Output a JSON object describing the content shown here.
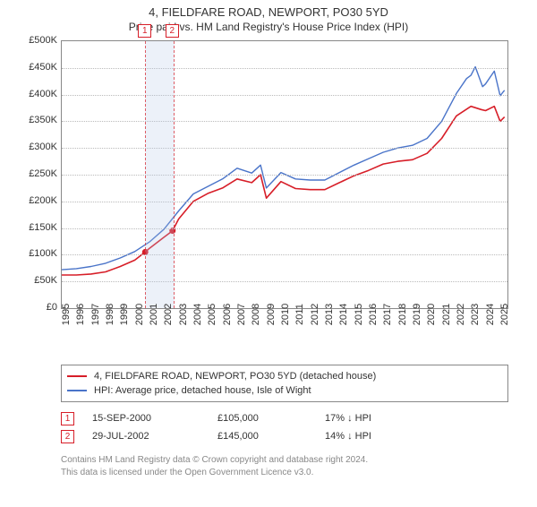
{
  "title": "4, FIELDFARE ROAD, NEWPORT, PO30 5YD",
  "subtitle": "Price paid vs. HM Land Registry's House Price Index (HPI)",
  "chart": {
    "type": "line",
    "background_color": "#ffffff",
    "grid_color": "#bbbbbb",
    "axis_color": "#888888",
    "title_fontsize": 13,
    "label_fontsize": 11,
    "x": {
      "min": 1995,
      "max": 2025.5,
      "ticks": [
        1995,
        1996,
        1997,
        1998,
        1999,
        2000,
        2001,
        2002,
        2003,
        2004,
        2005,
        2006,
        2007,
        2008,
        2009,
        2010,
        2011,
        2012,
        2013,
        2014,
        2015,
        2016,
        2017,
        2018,
        2019,
        2020,
        2021,
        2022,
        2023,
        2024,
        2025
      ]
    },
    "y": {
      "min": 0,
      "max": 500000,
      "tick_step": 50000,
      "labels": [
        "£0",
        "£50K",
        "£100K",
        "£150K",
        "£200K",
        "£250K",
        "£300K",
        "£350K",
        "£400K",
        "£450K",
        "£500K"
      ]
    },
    "band": {
      "from": 2000.71,
      "to": 2002.58
    },
    "series": [
      {
        "name": "4, FIELDFARE ROAD, NEWPORT, PO30 5YD (detached house)",
        "color": "#d71e28",
        "line_width": 1.6,
        "data": [
          [
            1995,
            62000
          ],
          [
            1996,
            62000
          ],
          [
            1997,
            64000
          ],
          [
            1998,
            68000
          ],
          [
            1999,
            78000
          ],
          [
            2000,
            90000
          ],
          [
            2000.71,
            105000
          ],
          [
            2001,
            112000
          ],
          [
            2002,
            133000
          ],
          [
            2002.58,
            145000
          ],
          [
            2003,
            167000
          ],
          [
            2004,
            200000
          ],
          [
            2005,
            215000
          ],
          [
            2006,
            225000
          ],
          [
            2007,
            242000
          ],
          [
            2008,
            235000
          ],
          [
            2008.6,
            250000
          ],
          [
            2009,
            206000
          ],
          [
            2010,
            237000
          ],
          [
            2011,
            224000
          ],
          [
            2012,
            222000
          ],
          [
            2013,
            222000
          ],
          [
            2014,
            235000
          ],
          [
            2015,
            248000
          ],
          [
            2016,
            258000
          ],
          [
            2017,
            270000
          ],
          [
            2018,
            275000
          ],
          [
            2019,
            278000
          ],
          [
            2020,
            290000
          ],
          [
            2021,
            318000
          ],
          [
            2022,
            360000
          ],
          [
            2023,
            378000
          ],
          [
            2023.7,
            372000
          ],
          [
            2024,
            370000
          ],
          [
            2024.6,
            378000
          ],
          [
            2025,
            350000
          ],
          [
            2025.3,
            358000
          ]
        ]
      },
      {
        "name": "HPI: Average price, detached house, Isle of Wight",
        "color": "#4a74c9",
        "line_width": 1.4,
        "data": [
          [
            1995,
            72000
          ],
          [
            1996,
            74000
          ],
          [
            1997,
            78000
          ],
          [
            1998,
            84000
          ],
          [
            1999,
            94000
          ],
          [
            2000,
            106000
          ],
          [
            2001,
            124000
          ],
          [
            2002,
            148000
          ],
          [
            2003,
            182000
          ],
          [
            2004,
            214000
          ],
          [
            2005,
            228000
          ],
          [
            2006,
            242000
          ],
          [
            2007,
            262000
          ],
          [
            2008,
            253000
          ],
          [
            2008.6,
            268000
          ],
          [
            2009,
            225000
          ],
          [
            2010,
            254000
          ],
          [
            2011,
            242000
          ],
          [
            2012,
            240000
          ],
          [
            2013,
            240000
          ],
          [
            2014,
            254000
          ],
          [
            2015,
            268000
          ],
          [
            2016,
            280000
          ],
          [
            2017,
            292000
          ],
          [
            2018,
            300000
          ],
          [
            2019,
            305000
          ],
          [
            2020,
            318000
          ],
          [
            2021,
            350000
          ],
          [
            2022,
            402000
          ],
          [
            2022.7,
            430000
          ],
          [
            2023,
            436000
          ],
          [
            2023.3,
            452000
          ],
          [
            2023.8,
            415000
          ],
          [
            2024,
            420000
          ],
          [
            2024.6,
            444000
          ],
          [
            2025,
            398000
          ],
          [
            2025.3,
            408000
          ]
        ]
      }
    ],
    "markers": [
      {
        "label": "1",
        "x": 2000.71,
        "y": 105000,
        "color": "#d71e28"
      },
      {
        "label": "2",
        "x": 2002.58,
        "y": 145000,
        "color": "#d71e28"
      }
    ]
  },
  "legend": {
    "items": [
      {
        "color": "#d71e28",
        "label": "4, FIELDFARE ROAD, NEWPORT, PO30 5YD (detached house)"
      },
      {
        "color": "#4a74c9",
        "label": "HPI: Average price, detached house, Isle of Wight"
      }
    ]
  },
  "sales": [
    {
      "n": "1",
      "date": "15-SEP-2000",
      "price": "£105,000",
      "pct": "17% ↓ HPI"
    },
    {
      "n": "2",
      "date": "29-JUL-2002",
      "price": "£145,000",
      "pct": "14% ↓ HPI"
    }
  ],
  "copyright": {
    "l1": "Contains HM Land Registry data © Crown copyright and database right 2024.",
    "l2": "This data is licensed under the Open Government Licence v3.0."
  }
}
